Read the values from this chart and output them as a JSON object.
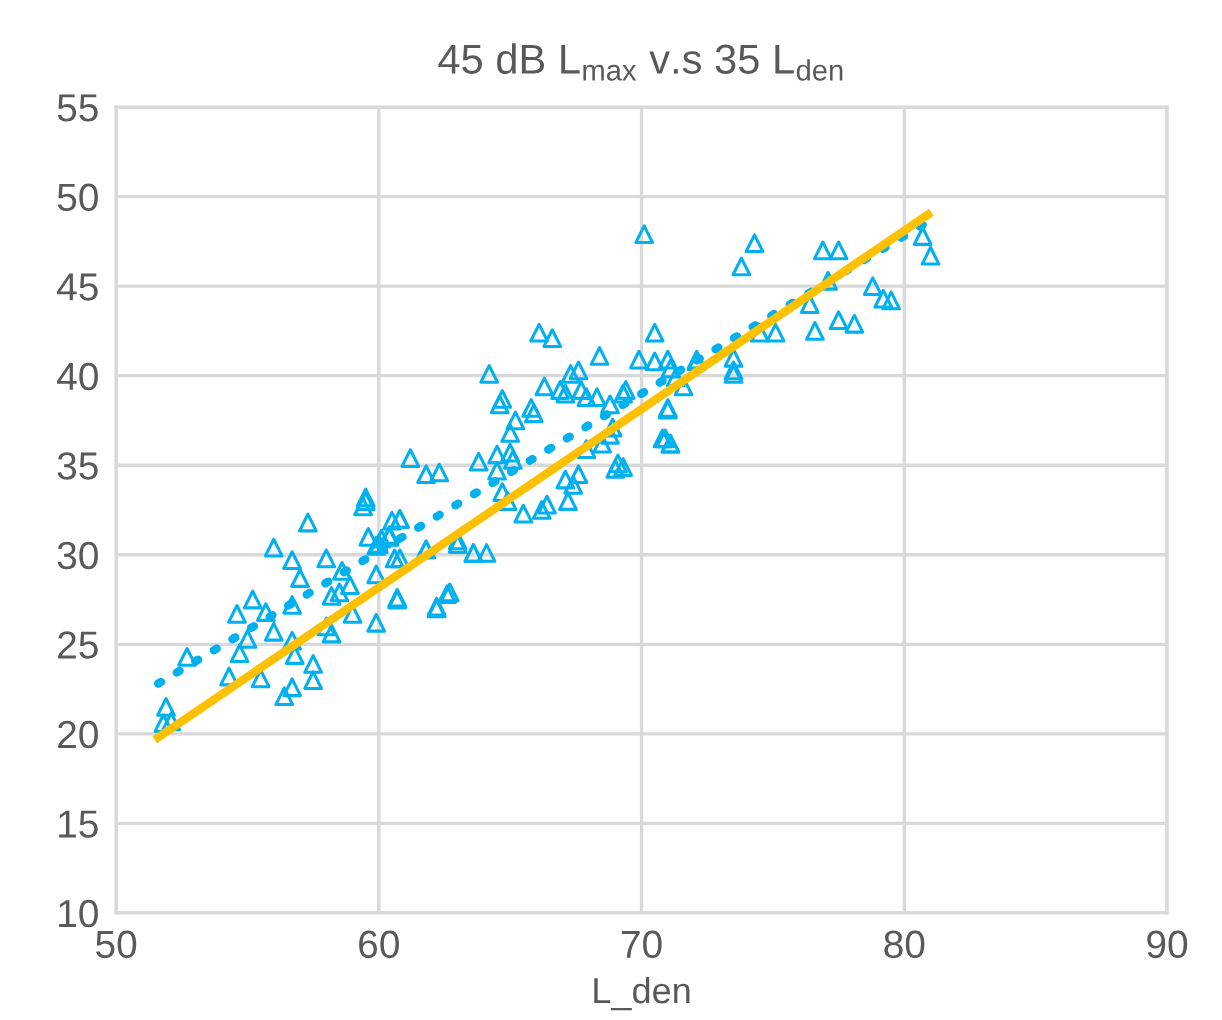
{
  "chart_data": {
    "type": "scatter",
    "title": "45 dB L$_{max}$ v.s 35 L$_{den}$",
    "xlabel": "L_den",
    "xlim": [
      50,
      90
    ],
    "xticks": [
      50,
      60,
      70,
      80,
      90
    ],
    "ylim": [
      10,
      55
    ],
    "yticks": [
      10,
      15,
      20,
      25,
      30,
      35,
      40,
      45,
      50,
      55
    ],
    "grid": true,
    "series": [
      {
        "marker": "triangle",
        "color": "#00b0f0",
        "x": [
          51.9,
          51.8,
          52.1,
          52.7,
          54.3,
          54.7,
          55.0,
          54.6,
          55.2,
          55.7,
          56.0,
          56.7,
          57.0,
          56.0,
          55.5,
          56.4,
          56.7,
          57.5,
          57.5,
          56.7,
          56.8,
          56.7,
          57.3,
          58.0,
          58.2,
          58.5,
          58.9,
          59.0,
          58.0,
          58.2,
          59.9,
          58.6,
          59.5,
          59.4,
          59.6,
          59.9,
          59.9,
          60.5,
          60.8,
          60.1,
          60.4,
          60.6,
          60.7,
          61.8,
          62.2,
          62.6,
          63.0,
          63.6,
          66.1,
          66.6,
          70.5,
          64.2,
          64.7,
          64.6,
          65.2,
          65.0,
          65.8,
          65.9,
          66.3,
          66.9,
          67.3,
          67.6,
          67.1,
          67.7,
          67.9,
          68.4,
          68.3,
          68.8,
          69.4,
          69.3,
          69.9,
          70.5,
          71.0,
          72.1,
          71.0,
          70.8,
          71.1,
          68.9,
          68.8,
          68.5,
          67.9,
          69.1,
          69.3,
          69.0,
          67.6,
          67.4,
          67.1,
          67.2,
          66.4,
          66.2,
          65.5,
          65.0,
          65.1,
          64.5,
          64.5,
          64.7,
          64.9,
          63.8,
          61.2,
          61.8,
          62.3,
          63.0,
          63.6,
          64.1,
          61.8,
          60.7,
          62.2,
          62.7,
          59.5,
          60.8,
          60.4,
          60.0,
          60.8,
          74.3,
          73.8,
          76.9,
          77.5,
          77.1,
          78.8,
          79.2,
          79.5,
          76.4,
          76.6,
          77.5,
          78.1,
          74.5,
          75.1,
          72.1,
          73.5,
          73.5,
          73.5,
          71.1,
          71.3,
          71.6,
          71.0,
          70.9,
          71.1,
          80.7,
          81.0,
          70.1
        ],
        "values": [
          21.5,
          20.6,
          20.7,
          24.3,
          23.2,
          24.5,
          25.3,
          26.7,
          27.5,
          26.8,
          30.4,
          29.7,
          28.7,
          25.7,
          23.1,
          22.1,
          22.6,
          23.9,
          23.0,
          25.2,
          24.4,
          27.2,
          31.8,
          29.8,
          27.7,
          27.9,
          28.3,
          26.7,
          26.0,
          25.6,
          26.2,
          29.1,
          33.0,
          32.7,
          31.0,
          30.5,
          28.9,
          31.9,
          32.0,
          30.9,
          31.0,
          29.8,
          27.5,
          30.3,
          27.0,
          27.8,
          30.8,
          30.1,
          42.4,
          42.1,
          42.4,
          40.1,
          38.7,
          38.4,
          37.5,
          36.8,
          38.2,
          37.9,
          39.4,
          39.2,
          40.1,
          40.3,
          39.0,
          39.2,
          38.8,
          41.1,
          38.8,
          38.4,
          39.2,
          39.0,
          40.9,
          40.8,
          40.9,
          40.9,
          38.1,
          36.5,
          36.2,
          37.1,
          36.7,
          36.2,
          35.9,
          35.1,
          34.9,
          34.8,
          34.5,
          33.9,
          34.2,
          33.0,
          32.8,
          32.5,
          32.3,
          35.7,
          35.3,
          35.6,
          34.7,
          33.5,
          33.0,
          35.2,
          35.4,
          34.5,
          34.6,
          30.6,
          30.1,
          30.1,
          30.3,
          27.6,
          27.1,
          27.9,
          33.2,
          32.0,
          31.1,
          30.6,
          29.8,
          47.4,
          46.1,
          47.0,
          47.0,
          45.3,
          45.0,
          44.3,
          44.2,
          44.0,
          42.5,
          43.1,
          42.9,
          42.4,
          42.4,
          40.8,
          41.0,
          40.3,
          40.1,
          40.4,
          39.9,
          39.4,
          38.2,
          36.5,
          36.2,
          47.8,
          46.7,
          47.9
        ]
      },
      {
        "type": "line",
        "line_style": "dotted",
        "color": "#00b0f0",
        "x": [
          51.6,
          80.9
        ],
        "values": [
          22.8,
          48.6
        ]
      },
      {
        "type": "line",
        "line_style": "solid",
        "color": "#ffc000",
        "x": [
          51.6,
          80.9
        ],
        "values": [
          19.8,
          49.0
        ]
      }
    ]
  }
}
